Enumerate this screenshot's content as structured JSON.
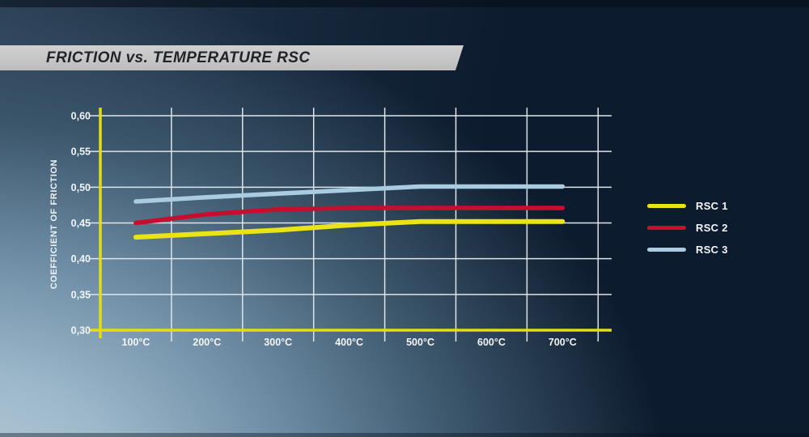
{
  "banner": {
    "title": "FRICTION vs. TEMPERATURE RSC"
  },
  "chart_data": {
    "type": "line",
    "title": "FRICTION vs. TEMPERATURE RSC",
    "xlabel": "",
    "ylabel": "COEFFICIENT OF FRICTION",
    "categories": [
      "100°C",
      "200°C",
      "300°C",
      "400°C",
      "500°C",
      "600°C",
      "700°C"
    ],
    "x_values": [
      100,
      200,
      300,
      400,
      500,
      600,
      700
    ],
    "ylim": [
      0.3,
      0.6
    ],
    "ytick_step": 0.05,
    "ytick_labels": [
      "0,30",
      "0,35",
      "0,40",
      "0,45",
      "0,50",
      "0,55",
      "0,60"
    ],
    "grid": true,
    "legend_position": "right",
    "colors": {
      "axis": "#e6dc12",
      "grid": "#dfe4e8",
      "tick_text": "#f2f5f8"
    },
    "series": [
      {
        "name": "RSC 1",
        "color": "#eae414",
        "values": [
          0.43,
          0.435,
          0.44,
          0.447,
          0.452,
          0.452,
          0.452
        ]
      },
      {
        "name": "RSC 2",
        "color": "#c60e2e",
        "values": [
          0.45,
          0.462,
          0.469,
          0.471,
          0.471,
          0.471,
          0.471
        ]
      },
      {
        "name": "RSC 3",
        "color": "#a9cce0",
        "values": [
          0.48,
          0.486,
          0.491,
          0.496,
          0.501,
          0.501,
          0.501
        ]
      }
    ]
  }
}
